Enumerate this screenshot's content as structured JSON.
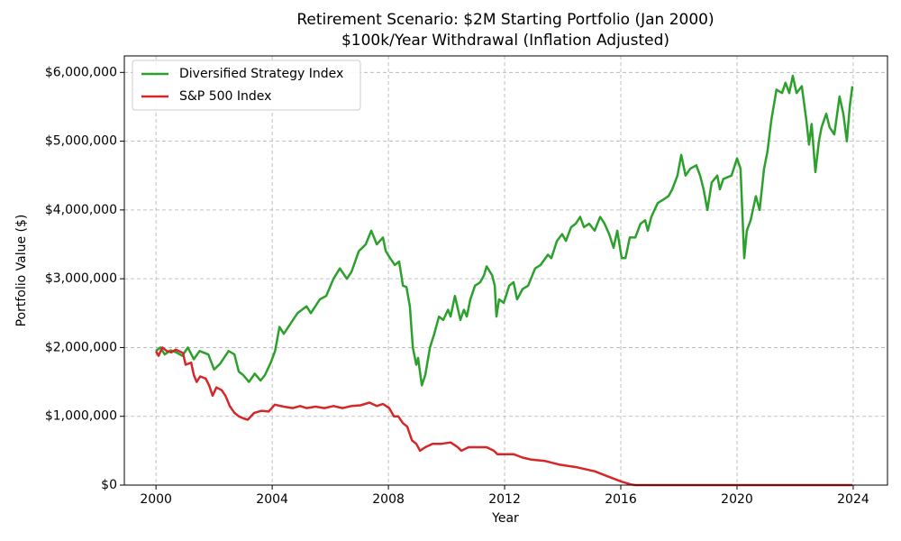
{
  "chart_data": {
    "type": "line",
    "title": "Retirement Scenario: $2M Starting Portfolio (Jan 2000)",
    "subtitle": "$100k/Year Withdrawal (Inflation Adjusted)",
    "x_label": "Year",
    "y_label": "Portfolio Value ($)",
    "xlim": [
      1998.91,
      2025.18
    ],
    "ylim": [
      0,
      6240000
    ],
    "xticks": [
      2000,
      2004,
      2008,
      2012,
      2016,
      2020,
      2024
    ],
    "yticks": [
      {
        "value": 0,
        "label": "$0"
      },
      {
        "value": 1000000,
        "label": "$1,000,000"
      },
      {
        "value": 2000000,
        "label": "$2,000,000"
      },
      {
        "value": 3000000,
        "label": "$3,000,000"
      },
      {
        "value": 4000000,
        "label": "$4,000,000"
      },
      {
        "value": 5000000,
        "label": "$5,000,000"
      },
      {
        "value": 6000000,
        "label": "$6,000,000"
      }
    ],
    "grid": true,
    "legend": "upper-left",
    "series": [
      {
        "name": "Diversified Strategy Index",
        "color": "#2ca02c",
        "x": [
          2000.0,
          2000.15,
          2000.3,
          2000.5,
          2000.7,
          2000.9,
          2001.1,
          2001.3,
          2001.5,
          2001.8,
          2002.0,
          2002.2,
          2002.5,
          2002.7,
          2002.85,
          2003.0,
          2003.2,
          2003.4,
          2003.6,
          2003.75,
          2003.95,
          2004.1,
          2004.25,
          2004.4,
          2004.87,
          2005.18,
          2005.33,
          2005.64,
          2005.86,
          2006.11,
          2006.33,
          2006.57,
          2006.73,
          2006.98,
          2007.1,
          2007.22,
          2007.41,
          2007.6,
          2007.81,
          2007.91,
          2008.06,
          2008.22,
          2008.37,
          2008.5,
          2008.62,
          2008.74,
          2008.84,
          2008.96,
          2009.02,
          2009.15,
          2009.27,
          2009.43,
          2009.58,
          2009.74,
          2009.89,
          2010.05,
          2010.14,
          2010.29,
          2010.48,
          2010.6,
          2010.7,
          2010.82,
          2010.98,
          2011.16,
          2011.29,
          2011.38,
          2011.57,
          2011.66,
          2011.72,
          2011.81,
          2011.97,
          2012.16,
          2012.31,
          2012.43,
          2012.62,
          2012.81,
          2013.05,
          2013.24,
          2013.49,
          2013.61,
          2013.8,
          2013.98,
          2014.11,
          2014.29,
          2014.45,
          2014.6,
          2014.73,
          2014.91,
          2015.1,
          2015.29,
          2015.44,
          2015.6,
          2015.75,
          2015.88,
          2016.03,
          2016.16,
          2016.31,
          2016.5,
          2016.68,
          2016.84,
          2016.93,
          2017.05,
          2017.27,
          2017.46,
          2017.64,
          2017.77,
          2017.95,
          2018.08,
          2018.23,
          2018.39,
          2018.6,
          2018.73,
          2018.85,
          2018.98,
          2019.13,
          2019.32,
          2019.41,
          2019.53,
          2019.81,
          2020.0,
          2020.12,
          2020.25,
          2020.34,
          2020.47,
          2020.65,
          2020.78,
          2020.93,
          2021.05,
          2021.18,
          2021.36,
          2021.55,
          2021.67,
          2021.8,
          2021.92,
          2022.05,
          2022.23,
          2022.39,
          2022.48,
          2022.57,
          2022.7,
          2022.82,
          2022.91,
          2023.07,
          2023.19,
          2023.35,
          2023.53,
          2023.66,
          2023.78,
          2023.88,
          2023.97
        ],
        "values": [
          1950000,
          2000000,
          1900000,
          1960000,
          1930000,
          1880000,
          2000000,
          1830000,
          1950000,
          1900000,
          1680000,
          1760000,
          1950000,
          1900000,
          1650000,
          1600000,
          1500000,
          1620000,
          1520000,
          1600000,
          1780000,
          1950000,
          2300000,
          2200000,
          2500000,
          2600000,
          2500000,
          2700000,
          2750000,
          3000000,
          3150000,
          3000000,
          3100000,
          3400000,
          3450000,
          3500000,
          3700000,
          3500000,
          3600000,
          3400000,
          3300000,
          3200000,
          3250000,
          2900000,
          2880000,
          2600000,
          2000000,
          1750000,
          1850000,
          1450000,
          1600000,
          2000000,
          2200000,
          2450000,
          2400000,
          2550000,
          2450000,
          2750000,
          2400000,
          2550000,
          2450000,
          2700000,
          2900000,
          2950000,
          3050000,
          3180000,
          3050000,
          2900000,
          2450000,
          2700000,
          2650000,
          2900000,
          2950000,
          2700000,
          2850000,
          2900000,
          3150000,
          3200000,
          3350000,
          3300000,
          3550000,
          3650000,
          3550000,
          3750000,
          3800000,
          3900000,
          3750000,
          3800000,
          3700000,
          3900000,
          3800000,
          3650000,
          3450000,
          3700000,
          3300000,
          3300000,
          3600000,
          3600000,
          3800000,
          3850000,
          3700000,
          3900000,
          4100000,
          4150000,
          4200000,
          4300000,
          4500000,
          4800000,
          4500000,
          4600000,
          4650000,
          4500000,
          4300000,
          4000000,
          4400000,
          4500000,
          4300000,
          4450000,
          4500000,
          4750000,
          4600000,
          3300000,
          3700000,
          3850000,
          4200000,
          4000000,
          4600000,
          4850000,
          5300000,
          5750000,
          5700000,
          5850000,
          5700000,
          5950000,
          5700000,
          5800000,
          5300000,
          4950000,
          5250000,
          4550000,
          5000000,
          5200000,
          5400000,
          5200000,
          5100000,
          5650000,
          5400000,
          5000000,
          5500000,
          5800000
        ]
      },
      {
        "name": "S&P 500 Index",
        "color": "#d62728",
        "x": [
          2000.0,
          2000.09,
          2000.22,
          2000.37,
          2000.53,
          2000.68,
          2000.93,
          2001.02,
          2001.21,
          2001.3,
          2001.4,
          2001.52,
          2001.71,
          2001.83,
          2001.95,
          2002.08,
          2002.26,
          2002.39,
          2002.54,
          2002.7,
          2002.85,
          2003.01,
          2003.16,
          2003.38,
          2003.63,
          2003.88,
          2004.09,
          2004.4,
          2004.71,
          2004.96,
          2005.18,
          2005.49,
          2005.8,
          2006.11,
          2006.42,
          2006.73,
          2007.04,
          2007.35,
          2007.6,
          2007.81,
          2008.03,
          2008.19,
          2008.34,
          2008.5,
          2008.65,
          2008.81,
          2008.96,
          2009.09,
          2009.27,
          2009.52,
          2009.83,
          2010.14,
          2010.39,
          2010.51,
          2010.76,
          2011.01,
          2011.38,
          2011.63,
          2011.75,
          2012.0,
          2012.31,
          2012.62,
          2012.93,
          2013.4,
          2013.86,
          2014.48,
          2015.1,
          2015.72,
          2016.03,
          2016.34,
          2016.5,
          2023.97
        ],
        "values": [
          1950000,
          1880000,
          2000000,
          1950000,
          1930000,
          1970000,
          1920000,
          1750000,
          1780000,
          1600000,
          1500000,
          1580000,
          1550000,
          1450000,
          1300000,
          1420000,
          1380000,
          1300000,
          1150000,
          1050000,
          1000000,
          970000,
          950000,
          1050000,
          1080000,
          1070000,
          1170000,
          1140000,
          1120000,
          1150000,
          1120000,
          1140000,
          1120000,
          1150000,
          1120000,
          1150000,
          1160000,
          1200000,
          1150000,
          1180000,
          1120000,
          1000000,
          1000000,
          900000,
          850000,
          650000,
          600000,
          500000,
          550000,
          600000,
          600000,
          620000,
          550000,
          500000,
          550000,
          550000,
          550000,
          500000,
          450000,
          450000,
          450000,
          400000,
          370000,
          350000,
          300000,
          260000,
          200000,
          100000,
          50000,
          10000,
          0,
          0
        ]
      }
    ]
  }
}
